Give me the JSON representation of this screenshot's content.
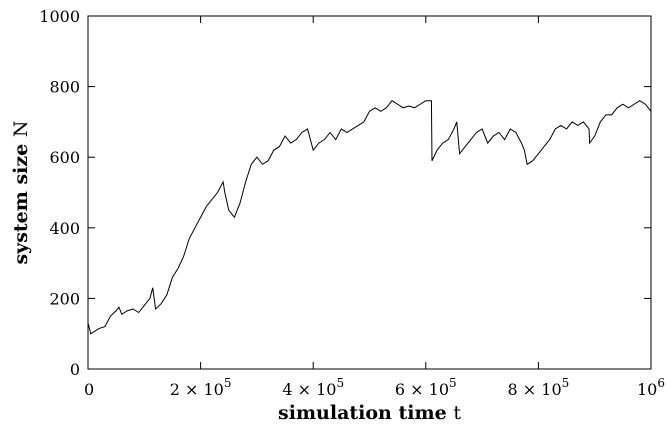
{
  "chart_data": {
    "type": "line",
    "xlabel": {
      "text": "simulation time",
      "var": "t"
    },
    "ylabel": {
      "text": "system size",
      "var": "N"
    },
    "xlim": [
      0,
      1000000
    ],
    "ylim": [
      0,
      1000
    ],
    "xticks": [
      {
        "value": 0,
        "base": "0",
        "exp": ""
      },
      {
        "value": 200000,
        "base": "2 × 10",
        "exp": "5"
      },
      {
        "value": 400000,
        "base": "4 × 10",
        "exp": "5"
      },
      {
        "value": 600000,
        "base": "6 × 10",
        "exp": "5"
      },
      {
        "value": 800000,
        "base": "8 × 10",
        "exp": "5"
      },
      {
        "value": 1000000,
        "base": "10",
        "exp": "6"
      }
    ],
    "yticks": [
      {
        "value": 0,
        "label": "0"
      },
      {
        "value": 200,
        "label": "200"
      },
      {
        "value": 400,
        "label": "400"
      },
      {
        "value": 600,
        "label": "600"
      },
      {
        "value": 800,
        "label": "800"
      },
      {
        "value": 1000,
        "label": "1000"
      }
    ],
    "grid": false,
    "series": [
      {
        "color": "#000000",
        "x": [
          0,
          5000,
          10000,
          20000,
          30000,
          40000,
          50000,
          55000,
          60000,
          70000,
          80000,
          90000,
          100000,
          110000,
          115000,
          120000,
          130000,
          140000,
          150000,
          160000,
          170000,
          180000,
          190000,
          200000,
          210000,
          220000,
          230000,
          240000,
          243000,
          250000,
          255000,
          260000,
          270000,
          280000,
          290000,
          300000,
          310000,
          320000,
          330000,
          340000,
          350000,
          360000,
          370000,
          380000,
          390000,
          400000,
          410000,
          420000,
          430000,
          440000,
          450000,
          460000,
          470000,
          480000,
          490000,
          500000,
          510000,
          520000,
          530000,
          540000,
          550000,
          560000,
          570000,
          580000,
          590000,
          600000,
          610000,
          611000,
          620000,
          630000,
          640000,
          650000,
          655000,
          660000,
          670000,
          680000,
          690000,
          700000,
          710000,
          720000,
          730000,
          740000,
          750000,
          760000,
          770000,
          775000,
          780000,
          790000,
          800000,
          810000,
          820000,
          830000,
          840000,
          850000,
          860000,
          870000,
          880000,
          890000,
          891000,
          900000,
          910000,
          920000,
          930000,
          940000,
          950000,
          960000,
          970000,
          980000,
          990000,
          1000000
        ],
        "y": [
          130,
          100,
          105,
          115,
          120,
          150,
          165,
          175,
          155,
          165,
          170,
          160,
          180,
          200,
          230,
          170,
          185,
          210,
          260,
          285,
          320,
          370,
          400,
          430,
          460,
          480,
          500,
          530,
          500,
          450,
          440,
          430,
          470,
          530,
          580,
          600,
          580,
          590,
          620,
          630,
          660,
          640,
          650,
          670,
          680,
          620,
          640,
          650,
          670,
          650,
          680,
          670,
          680,
          690,
          700,
          730,
          740,
          730,
          740,
          760,
          750,
          740,
          745,
          740,
          750,
          760,
          760,
          590,
          620,
          640,
          650,
          680,
          700,
          610,
          630,
          650,
          670,
          680,
          640,
          660,
          670,
          650,
          680,
          670,
          640,
          620,
          580,
          590,
          610,
          630,
          650,
          680,
          690,
          680,
          700,
          690,
          700,
          680,
          640,
          660,
          700,
          720,
          720,
          740,
          750,
          740,
          750,
          760,
          750,
          730
        ]
      }
    ]
  }
}
